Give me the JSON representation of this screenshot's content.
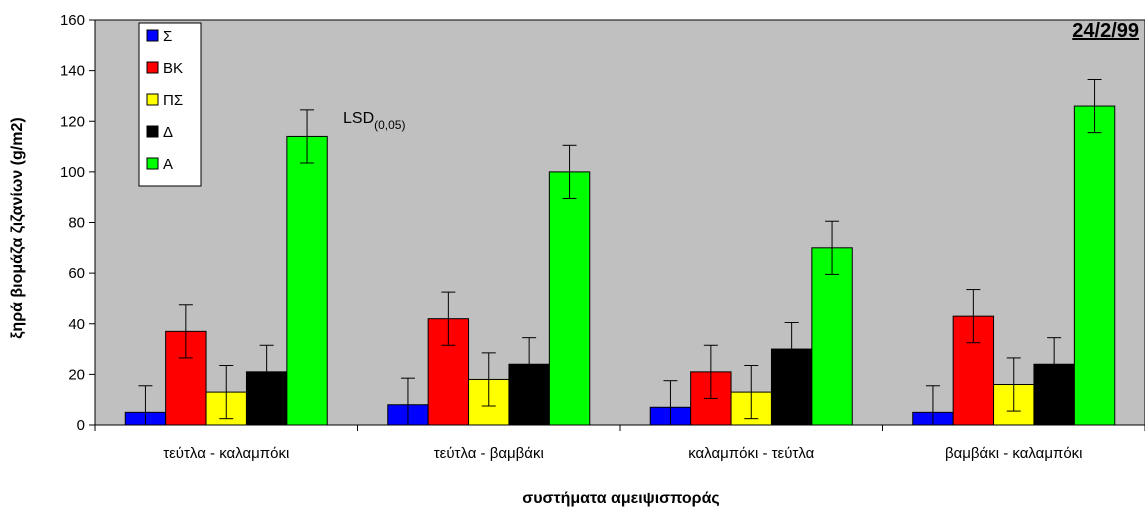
{
  "chart_data": {
    "type": "bar",
    "date_label": "24/2/99",
    "ylabel": "ξηρά βιομάζα ζιζανίων (g/m2)",
    "xlabel": "συστήματα αμειψισποράς",
    "ylim": [
      0,
      160
    ],
    "yticks": [
      0,
      20,
      40,
      60,
      80,
      100,
      120,
      140,
      160
    ],
    "categories": [
      "τεύτλα - καλαμπόκι",
      "τεύτλα - βαμβάκι",
      "καλαμπόκι - τεύτλα",
      "βαμβάκι - καλαμπόκι"
    ],
    "series": [
      {
        "name": "Σ",
        "color": "#0000ff",
        "values": [
          5,
          8,
          7,
          5
        ]
      },
      {
        "name": "ΒΚ",
        "color": "#ff0000",
        "values": [
          37,
          42,
          21,
          43
        ]
      },
      {
        "name": "ΠΣ",
        "color": "#ffff00",
        "values": [
          13,
          18,
          13,
          16
        ]
      },
      {
        "name": "Δ",
        "color": "#000000",
        "values": [
          21,
          24,
          30,
          24
        ]
      },
      {
        "name": "Α",
        "color": "#00ff00",
        "values": [
          114,
          100,
          70,
          126
        ]
      }
    ],
    "error_bar": 10.5,
    "annotation": {
      "main": "LSD",
      "sub": "(0,05)"
    },
    "plot_background": "#c0c0c0",
    "grid": false,
    "legend_position": "top-left"
  }
}
